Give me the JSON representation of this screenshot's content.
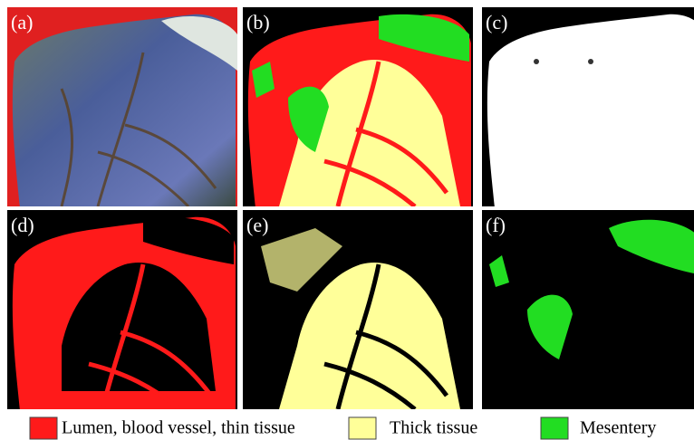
{
  "panels": [
    {
      "label": "(a)"
    },
    {
      "label": "(b)"
    },
    {
      "label": "(c)"
    },
    {
      "label": "(d)"
    },
    {
      "label": "(e)"
    },
    {
      "label": "(f)"
    }
  ],
  "legend": [
    {
      "label": "Lumen, blood vessel, thin tissue",
      "color": "#ff1a1a"
    },
    {
      "label": "Thick tissue",
      "color": "#ffff99"
    },
    {
      "label": "Mesentery",
      "color": "#22dd22"
    }
  ]
}
